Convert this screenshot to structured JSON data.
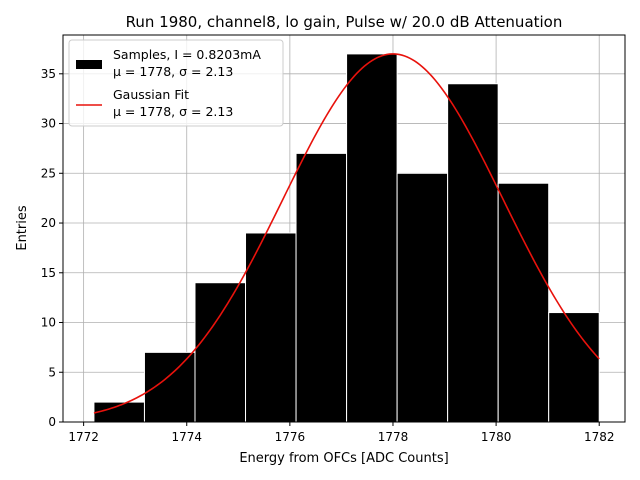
{
  "chart_data": {
    "type": "bar",
    "title": "Run 1980, channel8, lo gain, Pulse w/ 20.0 dB Attenuation",
    "xlabel": "Energy from OFCs [ADC Counts]",
    "ylabel": "Entries",
    "xlim": [
      1771.6,
      1782.5
    ],
    "ylim": [
      0,
      38.9
    ],
    "x_ticks": [
      1772,
      1774,
      1776,
      1778,
      1780,
      1782
    ],
    "y_ticks": [
      0,
      5,
      10,
      15,
      20,
      25,
      30,
      35
    ],
    "grid": true,
    "legend_position": "top-left",
    "histogram": {
      "name": "Samples, I = 0.8203mA",
      "stats_label": "μ = 1778, σ = 2.13",
      "bin_edges": [
        1772.2,
        1773.18,
        1774.16,
        1775.14,
        1776.12,
        1777.1,
        1778.08,
        1779.06,
        1780.04,
        1781.02,
        1782.0
      ],
      "counts": [
        2,
        7,
        14,
        19,
        27,
        37,
        25,
        34,
        24,
        11
      ],
      "color": "#000000"
    },
    "fit": {
      "name": "Gaussian Fit",
      "stats_label": "μ = 1778, σ = 2.13",
      "type": "gaussian",
      "amplitude": 37,
      "mu": 1778.0,
      "sigma": 2.13,
      "x_range": [
        1772.2,
        1782.0
      ],
      "color": "#e8120c"
    }
  }
}
